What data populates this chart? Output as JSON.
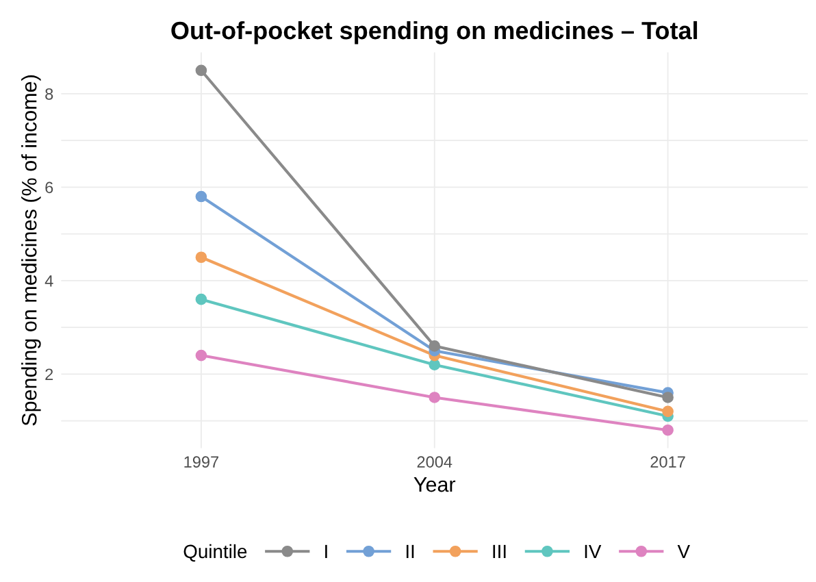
{
  "chart_data": {
    "type": "line",
    "title": "Out-of-pocket spending on medicines – Total",
    "xlabel": "Year",
    "ylabel": "Spending on medicines (% of income)",
    "legend_title": "Quintile",
    "categories": [
      "1997",
      "2004",
      "2017"
    ],
    "series": [
      {
        "name": "I",
        "color": "#8a8a8a",
        "values": [
          8.5,
          2.6,
          1.5
        ]
      },
      {
        "name": "II",
        "color": "#72a0d6",
        "values": [
          5.8,
          2.5,
          1.6
        ]
      },
      {
        "name": "III",
        "color": "#f2a15c",
        "values": [
          4.5,
          2.4,
          1.2
        ]
      },
      {
        "name": "IV",
        "color": "#5fc6bf",
        "values": [
          3.6,
          2.2,
          1.1
        ]
      },
      {
        "name": "V",
        "color": "#de83c0",
        "values": [
          2.4,
          1.5,
          0.8
        ]
      }
    ],
    "ylim": [
      0.415,
      8.885
    ],
    "yticks": [
      {
        "value": 1,
        "label": null
      },
      2,
      {
        "value": 3,
        "label": null
      },
      4,
      {
        "value": 5,
        "label": null
      },
      6,
      {
        "value": 7,
        "label": null
      },
      8
    ],
    "grid": true,
    "legend": "bottom",
    "marker": "circle",
    "line_style": "solid"
  }
}
